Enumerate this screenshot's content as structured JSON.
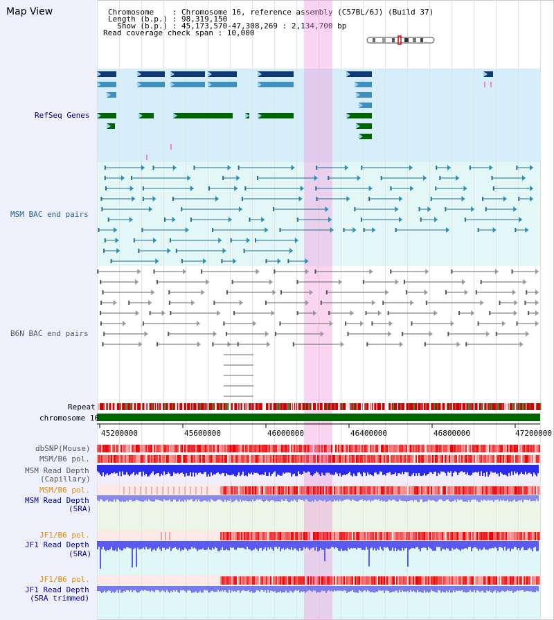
{
  "title": "Map View",
  "info": {
    "lines": [
      "Chromosome    : Chromosome 16, reference assembly (C57BL/6J) (Build 37)",
      "Length (b.p.) : 98,319,150",
      "  Show (b.p.) : 45,173,570-47,308,269 : 2,134,700 bp",
      "Read coverage check span : 10,000"
    ]
  },
  "tracks": {
    "refseq": "RefSeq Genes",
    "msm_bac": "MSM BAC end pairs",
    "b6n_bac": "B6N BAC end pairs",
    "repeat": "Repeat",
    "chromosome": "chromosome 16",
    "dbsnp": "dbSNP(Mouse)",
    "msm_pol": "MSM/B6 pol.",
    "msm_cap_1": "MSM Read Depth",
    "msm_cap_2": "(Capillary)",
    "msm_pol2": "MSM/B6 pol.",
    "msm_sra_1": "MSM Read Depth",
    "msm_sra_2": "(SRA)",
    "jf1_pol": "JF1/B6 pol.",
    "jf1_sra_1": "JF1 Read Depth",
    "jf1_sra_2": "(SRA)",
    "jf1_pol2": "JF1/B6 pol.",
    "jf1_trim_1": "JF1 Read Depth",
    "jf1_trim_2": "(SRA trimmed)"
  },
  "axis": {
    "ticks": [
      "45200000",
      "45600000",
      "46000000",
      "46400000",
      "46800000",
      "47200000"
    ]
  },
  "colors": {
    "refseq_label": "#000080",
    "msm_bac_label": "#1f5f8f",
    "b6n_label": "#555555",
    "orange_label": "#e68a00",
    "blue_label": "#0000a0",
    "highlight": "#f5b3e8",
    "gene_dark": "#0d3a75",
    "gene_mid": "#3f8fbf",
    "gene_green": "#006400"
  }
}
